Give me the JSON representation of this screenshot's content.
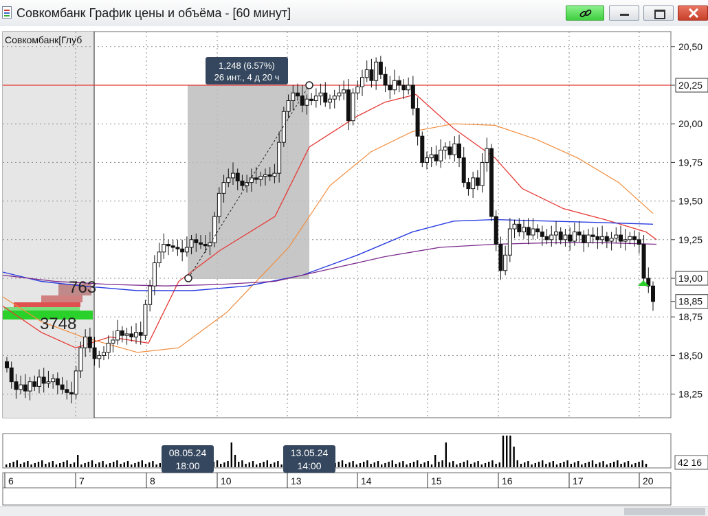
{
  "window": {
    "title": "Совкомбанк График цены и объёма - [60 минут]"
  },
  "chart": {
    "legend_label": "Совкомбанк[Глуб",
    "price_axis_labels": [
      "20,50",
      "20,25",
      "20,00",
      "19,75",
      "19,50",
      "19,25",
      "19,00",
      "18,85",
      "18,75",
      "18,50",
      "18,25"
    ],
    "current_price_label": "18,85",
    "reference_line_label": "20,25",
    "highlight_level_label": "19,00",
    "volume_axis_label": "42 16",
    "date_axis_labels": [
      "6",
      "7",
      "8",
      "10",
      "13",
      "14",
      "15",
      "16",
      "17",
      "20"
    ],
    "date_tooltips": [
      "08.05.24\n18:00",
      "13.05.24\n14:00"
    ],
    "measure_tooltip": {
      "line1": "1,248 (6.57%)",
      "line2": "26 инт., 4 д 20 ч"
    },
    "profile_labels": {
      "poc": "763",
      "volume": "3748"
    },
    "colors": {
      "reference_line": "#e53935",
      "ma_fast": "#e53935",
      "ma_slow": "#f28c3c",
      "ma_blue": "#2a3de0",
      "ma_purple": "#7b2a8c",
      "tooltip_bg": "#35475e",
      "measure_box": "#bdbdbd",
      "volume_bar": "#000000",
      "close_button": "#d24a32",
      "link_button": "#4fdc4f"
    }
  },
  "chart_data": {
    "type": "candlestick",
    "y_axis": {
      "min": 18.12,
      "max": 20.6,
      "tick_step": 0.25
    },
    "x_axis_dates": [
      "6",
      "7",
      "8",
      "10",
      "13",
      "14",
      "15",
      "16",
      "17",
      "20"
    ],
    "measure": {
      "from_price": 19.0,
      "to_price": 20.248,
      "change": "1,248 (6.57%)",
      "intervals": 26
    },
    "reference_level": 20.25,
    "close_price": 18.85
  }
}
